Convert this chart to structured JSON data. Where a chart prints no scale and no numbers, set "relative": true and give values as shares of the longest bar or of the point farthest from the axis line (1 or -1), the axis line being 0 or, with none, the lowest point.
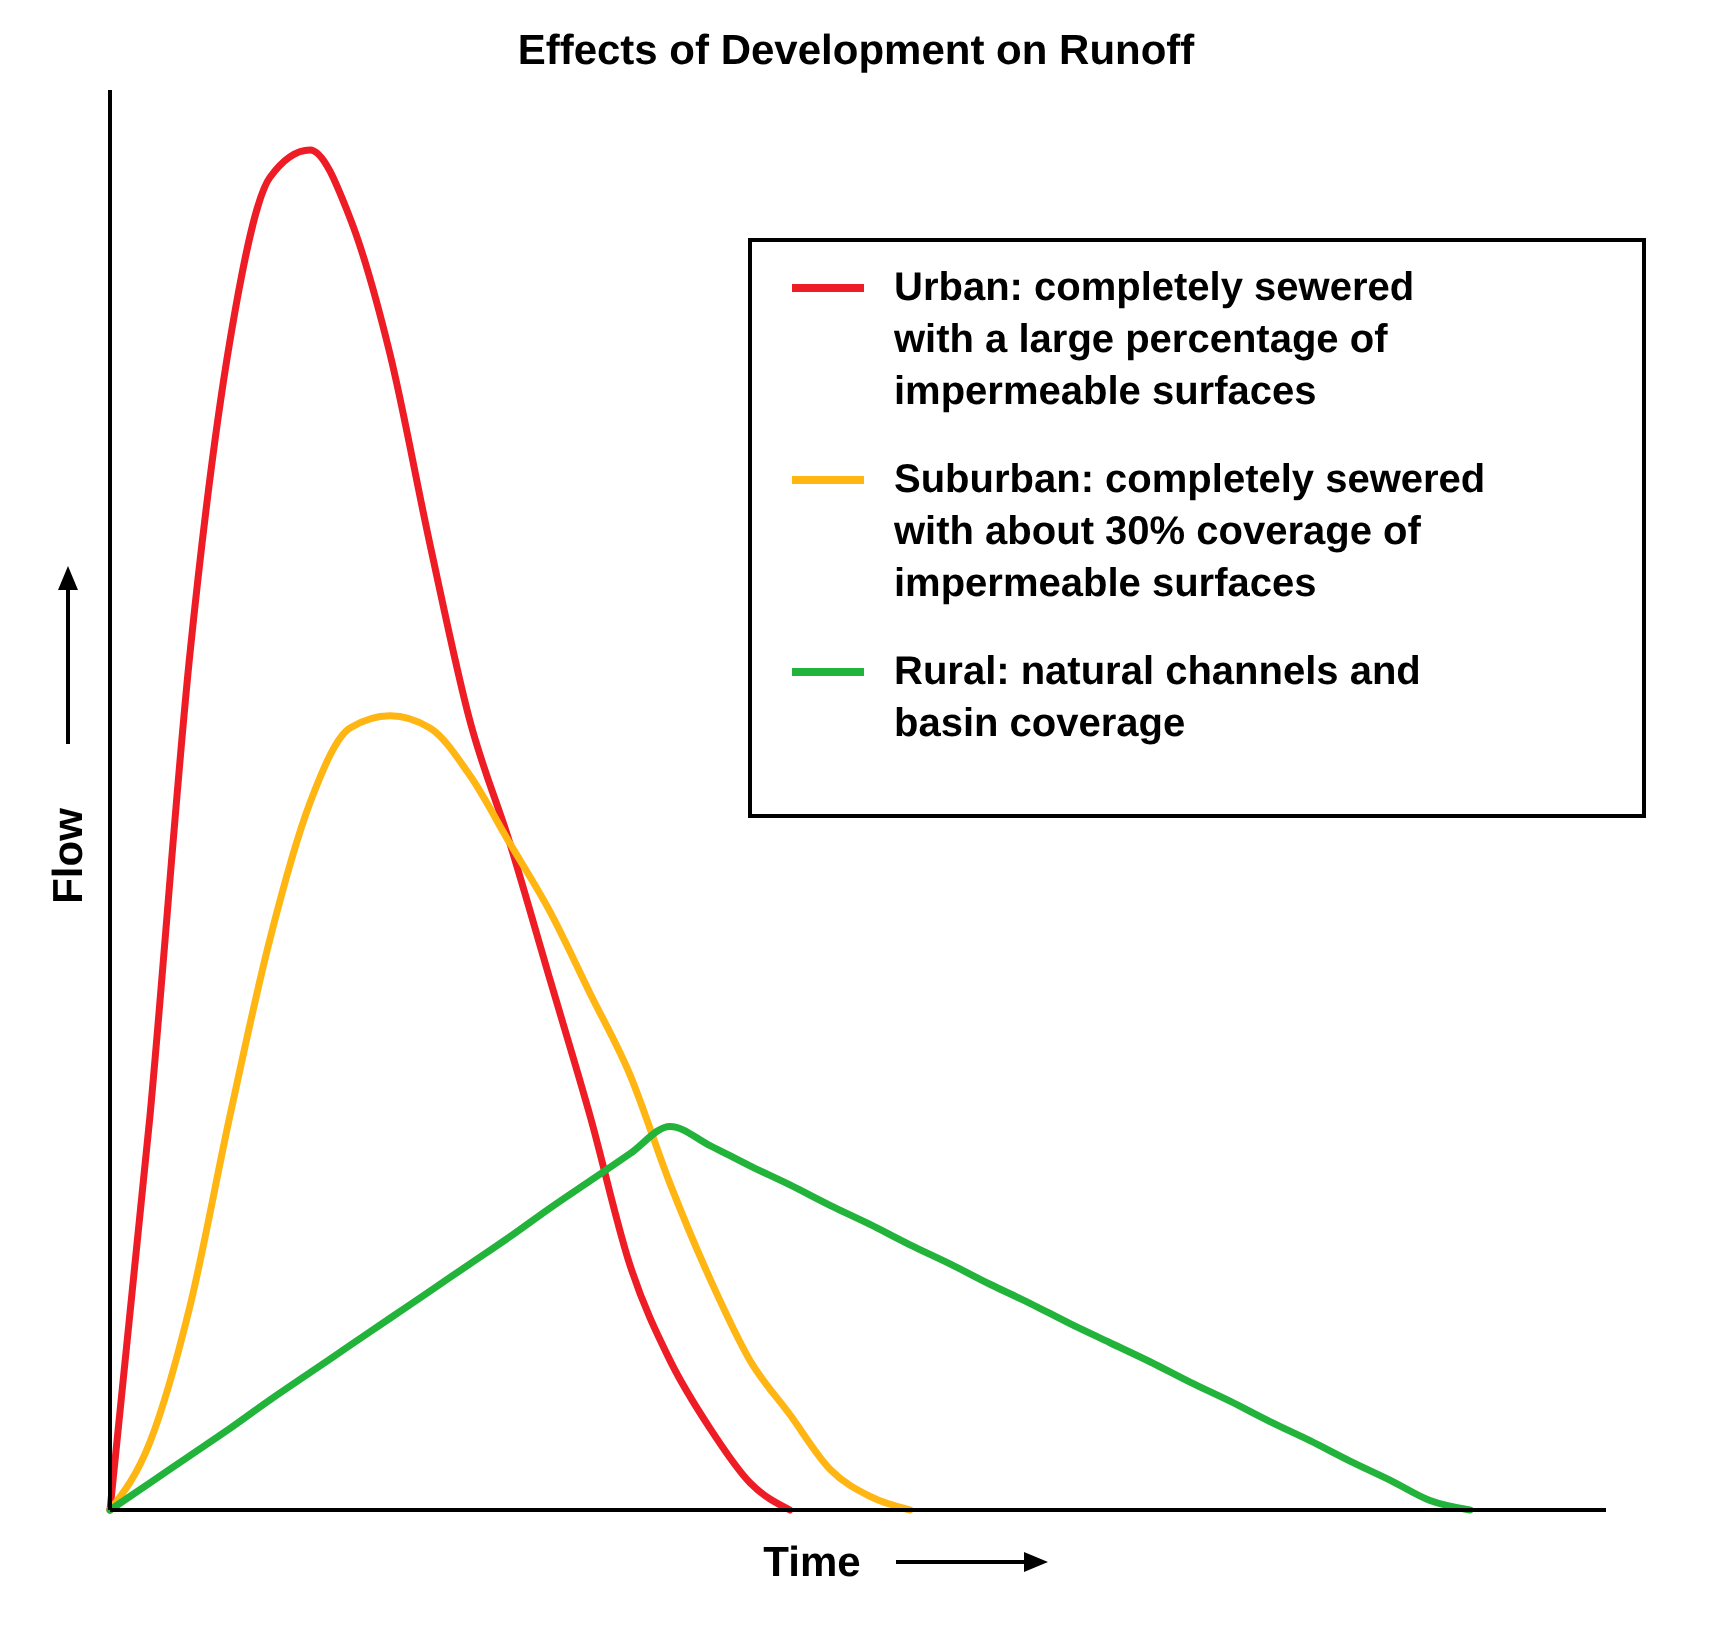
{
  "chart_data": {
    "type": "line",
    "title": "Effects of Development on Runoff",
    "xlabel": "Time",
    "ylabel": "Flow",
    "relative": true,
    "legend": "top right",
    "marker": "none",
    "line_style": "solid",
    "categories": [
      null,
      null,
      null,
      null,
      null,
      null,
      null,
      null,
      null,
      null,
      null,
      null,
      null,
      null,
      null,
      null,
      null,
      null,
      null,
      null,
      null,
      null,
      null,
      null,
      null,
      null,
      null,
      null,
      null,
      null,
      null,
      null,
      null,
      null,
      null,
      null,
      null,
      null
    ],
    "series": [
      {
        "name": "Urban: completely sewered with a large percentage of impermeable surfaces",
        "color": "#ee1c25",
        "values": [
          0,
          0.29,
          0.63,
          0.86,
          0.98,
          1,
          0.95,
          0.85,
          0.71,
          0.58,
          0.49,
          0.39,
          0.29,
          0.18,
          0.11,
          0.06,
          0.02,
          0,
          null,
          null,
          null,
          null,
          null,
          null,
          null,
          null,
          null,
          null,
          null,
          null,
          null,
          null,
          null,
          null,
          null,
          null,
          null,
          null
        ]
      },
      {
        "name": "Suburban: completely sewered with about 30% coverage of impermeable surfaces",
        "color": "#ffb612",
        "values": [
          0,
          0.05,
          0.15,
          0.29,
          0.42,
          0.52,
          0.575,
          0.584,
          0.575,
          0.54,
          0.49,
          0.44,
          0.38,
          0.32,
          0.24,
          0.17,
          0.11,
          0.07,
          0.03,
          0.01,
          0,
          null,
          null,
          null,
          null,
          null,
          null,
          null,
          null,
          null,
          null,
          null,
          null,
          null,
          null,
          null,
          null,
          null
        ]
      },
      {
        "name": "Rural: natural channels and basin coverage",
        "color": "#22b33a",
        "values": [
          0,
          0.02,
          0.04,
          0.06,
          0.081,
          0.101,
          0.121,
          0.141,
          0.161,
          0.181,
          0.201,
          0.222,
          0.242,
          0.262,
          0.282,
          0.268,
          0.253,
          0.239,
          0.224,
          0.21,
          0.195,
          0.181,
          0.166,
          0.152,
          0.137,
          0.123,
          0.109,
          0.094,
          0.08,
          0.065,
          0.051,
          0.036,
          0.022,
          0.007,
          0,
          null,
          null,
          null
        ]
      }
    ]
  }
}
